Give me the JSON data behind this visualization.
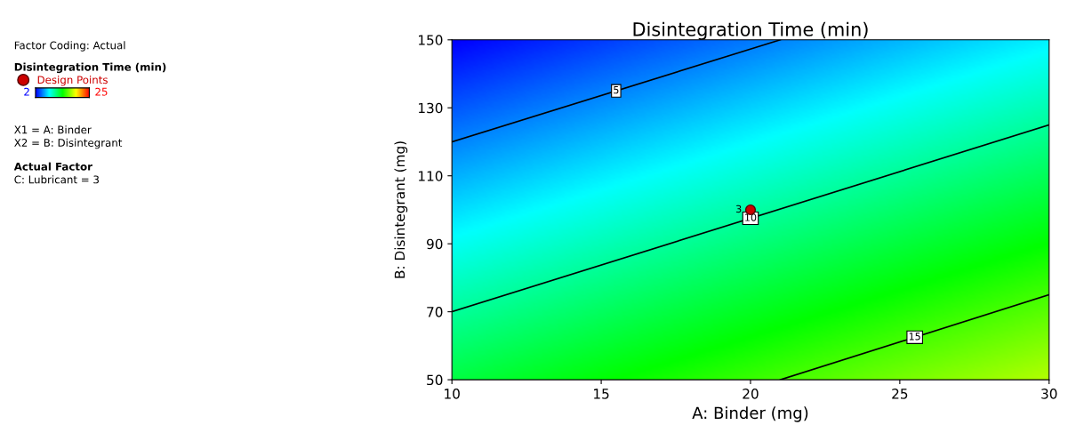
{
  "chart_data": {
    "type": "line",
    "title": "Disintegration Time (min)",
    "xlabel": "A: Binder (mg)",
    "ylabel": "B: Disintegrant (mg)",
    "legend_title": "Disintegration Time (min)",
    "xlim": [
      10,
      30
    ],
    "xticks": [
      10,
      15,
      20,
      25,
      30
    ],
    "ylim": [
      50,
      150
    ],
    "yticks": [
      50,
      70,
      90,
      110,
      130,
      150
    ],
    "grid": false,
    "legend": "left",
    "series": [
      {
        "name": "5",
        "color": "#000000",
        "x": [
          10,
          21.0
        ],
        "values": [
          120,
          150
        ]
      },
      {
        "name": "10",
        "color": "#000000",
        "x": [
          10,
          30
        ],
        "values": [
          70,
          125
        ]
      },
      {
        "name": "15",
        "color": "#000000",
        "x": [
          21.0,
          30
        ],
        "values": [
          50,
          75
        ]
      },
      {
        "type": "scatter",
        "name": "Design Points",
        "color": "#cc0000",
        "marker": "circle",
        "x": [
          20
        ],
        "values": [
          100
        ]
      }
    ],
    "annotations": [
      {
        "text": "3",
        "x": 20,
        "y": 100
      },
      "Factor Coding: Actual",
      "2",
      "25",
      "X1 = A: Binder",
      "X2 = B: Disintegrant",
      "Actual Factor",
      "C: Lubricant = 3"
    ]
  }
}
